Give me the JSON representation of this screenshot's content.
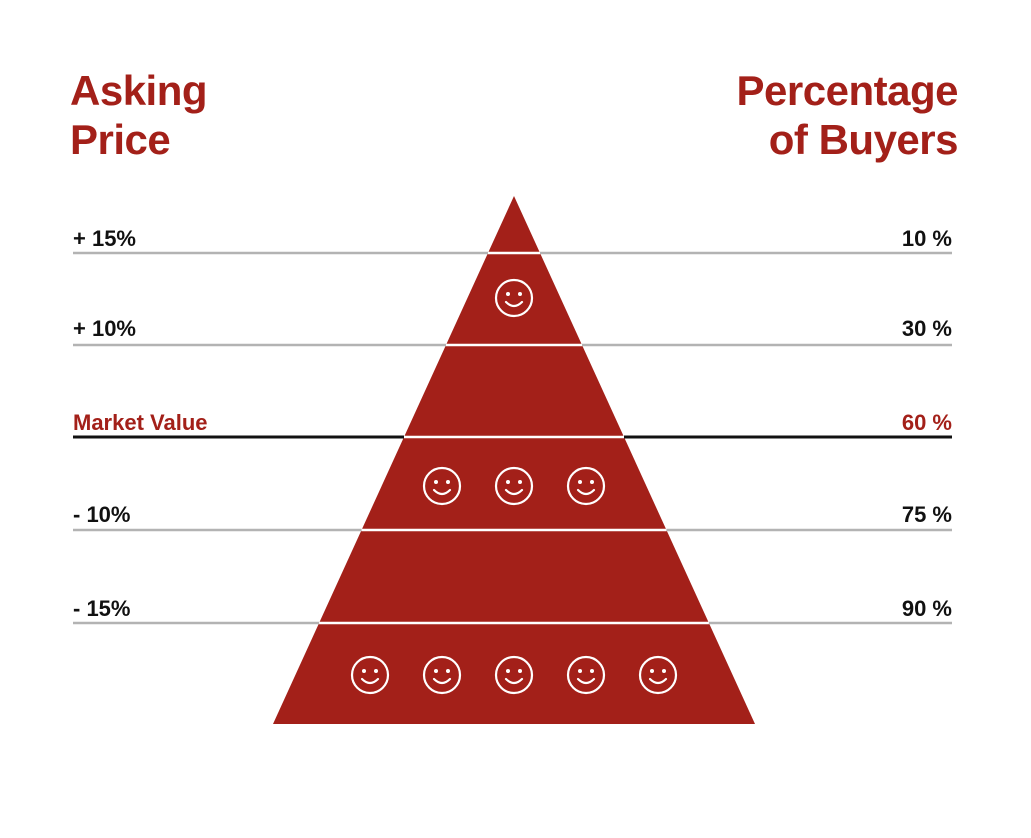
{
  "headings": {
    "left": [
      "Asking",
      "Price"
    ],
    "right": [
      "Percentage",
      "of Buyers"
    ]
  },
  "rows": [
    {
      "price": "+ 15%",
      "buyers": "10 %",
      "highlight": false
    },
    {
      "price": "+ 10%",
      "buyers": "30 %",
      "highlight": false
    },
    {
      "price": "Market Value",
      "buyers": "60 %",
      "highlight": true
    },
    {
      "price": "- 10%",
      "buyers": "75 %",
      "highlight": false
    },
    {
      "price": "- 15%",
      "buyers": "90 %",
      "highlight": false
    }
  ],
  "pyramid_smileys": [
    {
      "band": "upper",
      "count": 1
    },
    {
      "band": "middle",
      "count": 3
    },
    {
      "band": "lower",
      "count": 5
    }
  ],
  "colors": {
    "accent": "#a32019",
    "text": "#111111",
    "rule": "#b3b3b3",
    "market_rule": "#111111",
    "smiley": "#ffffff"
  },
  "icons": {
    "smiley": "smiley-face-icon"
  }
}
